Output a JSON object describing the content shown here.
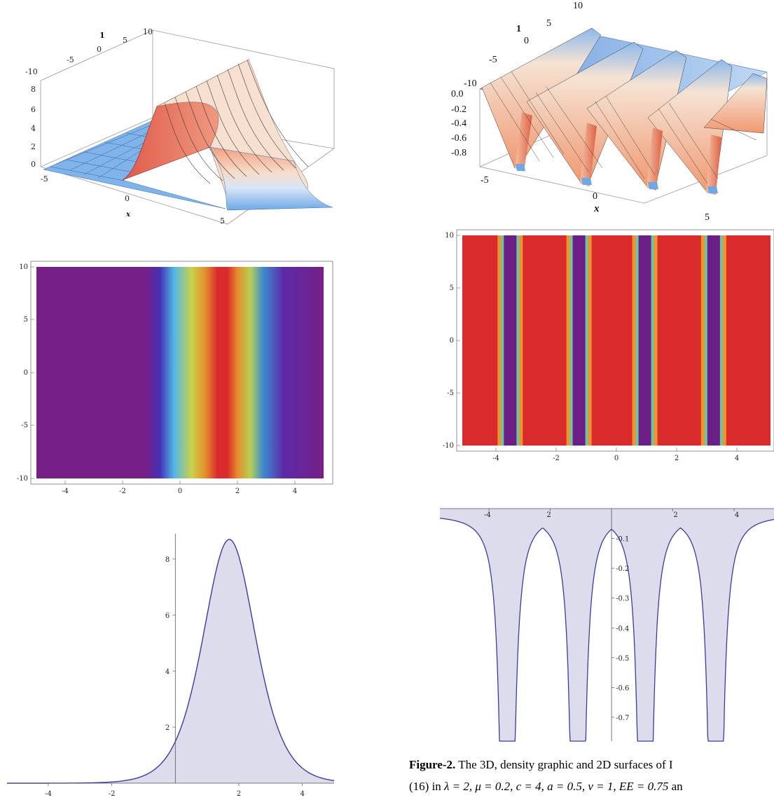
{
  "chart_data": [
    {
      "type": "surface3d",
      "x_range": [
        -5,
        5
      ],
      "t_range": [
        -10,
        10
      ],
      "z_range": [
        0,
        8.7
      ],
      "x_label": "x",
      "x_ticks": [
        "-5",
        "0",
        "5"
      ],
      "t_ticks": [
        "-10",
        "-5",
        "0",
        "5",
        "10"
      ],
      "t_label": "1",
      "z_ticks": [
        "0",
        "2",
        "4",
        "6",
        "8"
      ],
      "profile": "bright soliton, peak 8.7 at x = 1.7, constant along t",
      "colormap": "light blue to salmon"
    },
    {
      "type": "heatmap",
      "x_range": [
        -5,
        5
      ],
      "y_range": [
        -10,
        10
      ],
      "x_ticks": [
        "-4",
        "-2",
        "0",
        "2",
        "4"
      ],
      "y_ticks": [
        "-10",
        "-5",
        "0",
        "5",
        "10"
      ],
      "peak_x": 1.7,
      "colormap": "rainbow purple to red"
    },
    {
      "type": "area",
      "x_range": [
        -5.3,
        5
      ],
      "y_range": [
        0,
        8.9
      ],
      "x_ticks": [
        "-4",
        "-2",
        "2",
        "4"
      ],
      "y_ticks": [
        "2",
        "4",
        "6",
        "8"
      ],
      "peak": {
        "x": 1.7,
        "y": 8.7
      },
      "samples": [
        {
          "x": -4,
          "y": 0.01
        },
        {
          "x": -2,
          "y": 0.12
        },
        {
          "x": 0,
          "y": 1.9
        },
        {
          "x": 1,
          "y": 6.8
        },
        {
          "x": 1.7,
          "y": 8.7
        },
        {
          "x": 2.5,
          "y": 6.5
        },
        {
          "x": 3.5,
          "y": 2.4
        },
        {
          "x": 5,
          "y": 0.25
        }
      ]
    },
    {
      "type": "surface3d",
      "x_range": [
        -5,
        5
      ],
      "t_range": [
        -10,
        10
      ],
      "z_range": [
        -0.85,
        0
      ],
      "x_label": "x",
      "x_ticks": [
        "-5",
        "0",
        "5"
      ],
      "t_ticks": [
        "-10",
        "-5",
        "0",
        "5",
        "10"
      ],
      "t_label": "1",
      "z_ticks": [
        "0.0",
        "-0.2",
        "-0.4",
        "-0.6",
        "-0.8"
      ],
      "profile": "periodic dark ridges, troughs at x = -3.4, -1.1, 1.1, 3.4",
      "colormap": "light blue to salmon"
    },
    {
      "type": "heatmap",
      "x_range": [
        -5,
        5.3
      ],
      "y_range": [
        -10,
        10
      ],
      "x_ticks": [
        "-4",
        "-2",
        "0",
        "2",
        "4"
      ],
      "y_ticks": [
        "-10",
        "-5",
        "0",
        "5",
        "10"
      ],
      "trough_x": [
        -3.4,
        -1.1,
        1.1,
        3.4
      ],
      "colormap": "red with purple troughs"
    },
    {
      "type": "area",
      "x_range": [
        -5.6,
        5.3
      ],
      "y_range": [
        -0.78,
        0
      ],
      "x_ticks": [
        "-4",
        "2",
        "2",
        "4"
      ],
      "y_ticks": [
        "-0.1",
        "-0.2",
        "-0.3",
        "-0.4",
        "-0.5",
        "-0.6",
        "-0.7"
      ],
      "trough_x": [
        -3.4,
        -1.1,
        1.1,
        3.4
      ],
      "baseline_y": -0.02
    }
  ],
  "caption": {
    "label": "Figure-2.",
    "line1": " The 3D, density graphic and 2D surfaces of I",
    "line2_prefix": "(16) in ",
    "line2_params": "λ = 2, μ = 0.2, c = 4, a = 0.5,  ν = 1, EE = 0.75",
    "line2_suffix": "  an"
  },
  "colors": {
    "surface_blue": "#6fa8e6",
    "surface_salmon": "#f3a784",
    "area_fill": "#dcdcec",
    "area_line": "#3b3b9a",
    "heat_red": "#d92b2b",
    "heat_purple": "#6b1e86"
  }
}
